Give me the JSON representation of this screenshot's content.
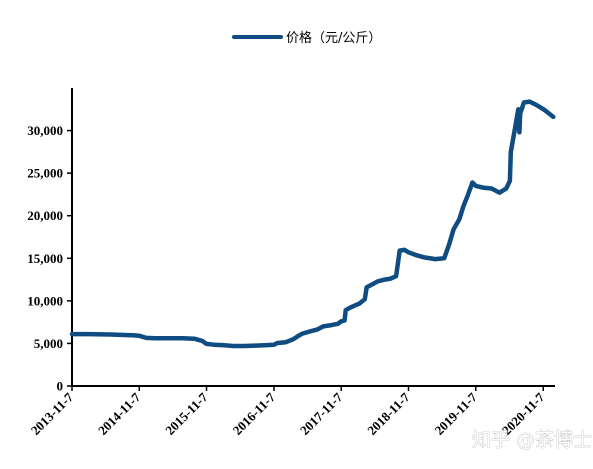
{
  "chart_data": {
    "type": "line",
    "series": [
      {
        "name": "价格（元/公斤）",
        "color": "#0f4c81",
        "points": [
          [
            "2013-11-07",
            6100
          ],
          [
            "2014-02-01",
            6100
          ],
          [
            "2014-06-01",
            6050
          ],
          [
            "2014-10-01",
            5950
          ],
          [
            "2014-11-07",
            5900
          ],
          [
            "2014-12-15",
            5650
          ],
          [
            "2015-02-01",
            5600
          ],
          [
            "2015-04-01",
            5600
          ],
          [
            "2015-07-01",
            5600
          ],
          [
            "2015-09-01",
            5550
          ],
          [
            "2015-10-15",
            5300
          ],
          [
            "2015-11-07",
            4950
          ],
          [
            "2015-12-15",
            4850
          ],
          [
            "2016-02-01",
            4800
          ],
          [
            "2016-04-01",
            4700
          ],
          [
            "2016-06-01",
            4700
          ],
          [
            "2016-08-01",
            4750
          ],
          [
            "2016-10-01",
            4800
          ],
          [
            "2016-11-07",
            4850
          ],
          [
            "2016-11-25",
            5050
          ],
          [
            "2017-01-10",
            5150
          ],
          [
            "2017-02-20",
            5500
          ],
          [
            "2017-03-20",
            5900
          ],
          [
            "2017-04-10",
            6150
          ],
          [
            "2017-05-20",
            6400
          ],
          [
            "2017-07-01",
            6650
          ],
          [
            "2017-08-01",
            7000
          ],
          [
            "2017-09-15",
            7150
          ],
          [
            "2017-10-20",
            7300
          ],
          [
            "2017-11-07",
            7600
          ],
          [
            "2017-11-25",
            7700
          ],
          [
            "2017-12-01",
            8900
          ],
          [
            "2017-12-25",
            9200
          ],
          [
            "2018-01-20",
            9450
          ],
          [
            "2018-02-15",
            9700
          ],
          [
            "2018-03-15",
            10200
          ],
          [
            "2018-03-25",
            11600
          ],
          [
            "2018-04-20",
            11900
          ],
          [
            "2018-05-25",
            12300
          ],
          [
            "2018-07-01",
            12500
          ],
          [
            "2018-08-01",
            12600
          ],
          [
            "2018-09-01",
            12900
          ],
          [
            "2018-09-20",
            15900
          ],
          [
            "2018-10-15",
            16000
          ],
          [
            "2018-11-07",
            15700
          ],
          [
            "2018-12-15",
            15400
          ],
          [
            "2019-02-01",
            15100
          ],
          [
            "2019-04-01",
            14900
          ],
          [
            "2019-05-20",
            15000
          ],
          [
            "2019-06-15",
            16600
          ],
          [
            "2019-07-10",
            18400
          ],
          [
            "2019-08-10",
            19600
          ],
          [
            "2019-09-01",
            21100
          ],
          [
            "2019-09-25",
            22400
          ],
          [
            "2019-10-20",
            23900
          ],
          [
            "2019-11-07",
            23500
          ],
          [
            "2019-12-15",
            23300
          ],
          [
            "2020-02-01",
            23200
          ],
          [
            "2020-03-15",
            22700
          ],
          [
            "2020-04-20",
            23200
          ],
          [
            "2020-05-10",
            24100
          ],
          [
            "2020-05-15",
            27500
          ],
          [
            "2020-06-05",
            30000
          ],
          [
            "2020-06-25",
            32500
          ],
          [
            "2020-07-01",
            29800
          ],
          [
            "2020-07-05",
            32000
          ],
          [
            "2020-07-25",
            33300
          ],
          [
            "2020-08-25",
            33400
          ],
          [
            "2020-10-01",
            33000
          ],
          [
            "2020-11-15",
            32400
          ],
          [
            "2021-01-01",
            31600
          ]
        ]
      }
    ],
    "x_ticks": [
      "2013-11-7",
      "2014-11-7",
      "2015-11-7",
      "2016-11-7",
      "2017-11-7",
      "2018-11-7",
      "2019-11-7",
      "2020-11-7"
    ],
    "x_range": [
      "2013-11-07",
      "2021-01-10"
    ],
    "y_ticks": [
      "0",
      "5,000",
      "10,000",
      "15,000",
      "20,000",
      "25,000",
      "30,000"
    ],
    "ylim": [
      0,
      35000
    ],
    "legend_position": "top-center",
    "grid": false
  },
  "watermark": "知乎 @茶博士"
}
